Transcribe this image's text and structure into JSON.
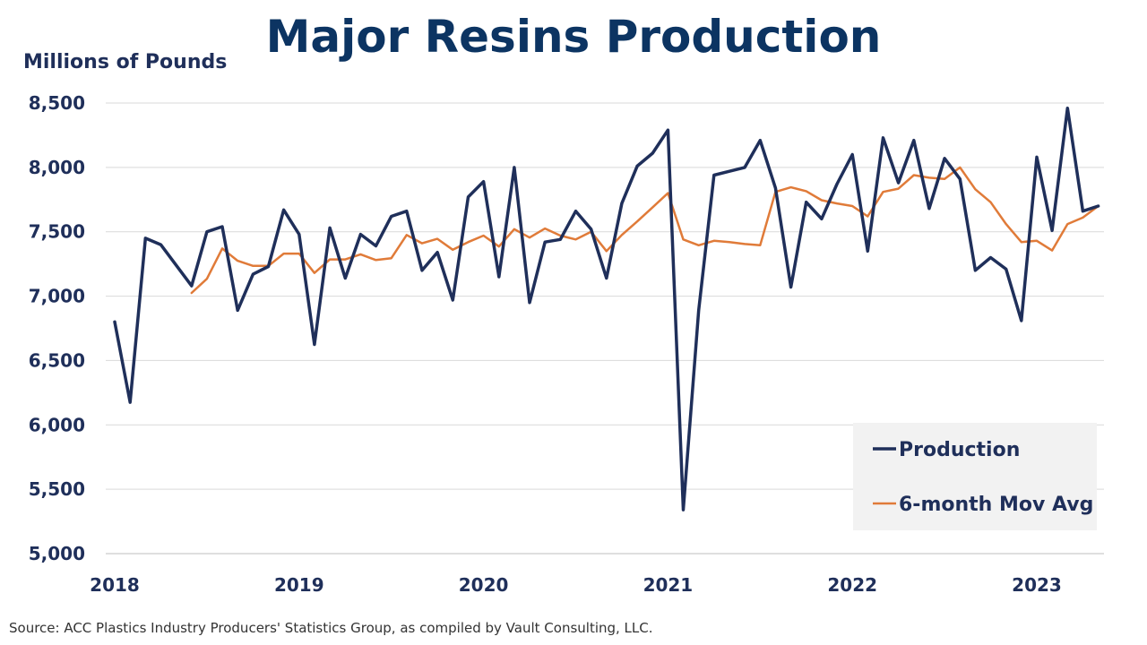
{
  "chart_data": {
    "type": "line",
    "title": "Major Resins Production",
    "ylabel": "Millions of Pounds",
    "xlabel": "",
    "ylim": [
      5000,
      8500
    ],
    "yticks": [
      5000,
      5500,
      6000,
      6500,
      7000,
      7500,
      8000,
      8500
    ],
    "ytick_labels": [
      "5,000",
      "5,500",
      "6,000",
      "6,500",
      "7,000",
      "7,500",
      "8,000",
      "8,500"
    ],
    "xticks": [
      "2018",
      "2019",
      "2020",
      "2021",
      "2022",
      "2023"
    ],
    "grid": "horizontal",
    "legend_position": "bottom-right",
    "x_start": "2018-01",
    "x_end": "2023-05",
    "series": [
      {
        "name": "Production",
        "color": "#1f2f5a",
        "values": [
          6800,
          6175,
          7450,
          7400,
          7240,
          7080,
          7500,
          7540,
          6890,
          7170,
          7230,
          7670,
          7480,
          6625,
          7530,
          7140,
          7480,
          7390,
          7620,
          7660,
          7200,
          7340,
          6970,
          7770,
          7890,
          7150,
          8000,
          6950,
          7420,
          7440,
          7660,
          7520,
          7140,
          7720,
          8010,
          8110,
          8290,
          5340,
          6890,
          7940,
          7970,
          8000,
          8210,
          7840,
          7070,
          7730,
          7600,
          7870,
          8100,
          7350,
          8230,
          7880,
          8210,
          7680,
          8070,
          7910,
          7200,
          7300,
          7210,
          6810,
          8080,
          7510,
          8460,
          7660,
          7700
        ]
      },
      {
        "name": "6-month Mov Avg",
        "color": "#e07b39",
        "values": [
          null,
          null,
          null,
          null,
          null,
          7025,
          7135,
          7370,
          7275,
          7235,
          7235,
          7330,
          7330,
          7180,
          7285,
          7285,
          7325,
          7280,
          7295,
          7475,
          7410,
          7445,
          7360,
          7420,
          7470,
          7385,
          7520,
          7455,
          7525,
          7470,
          7440,
          7500,
          7350,
          7475,
          7580,
          7690,
          7800,
          7440,
          7395,
          7430,
          7420,
          7405,
          7395,
          7810,
          7845,
          7815,
          7745,
          7720,
          7700,
          7620,
          7810,
          7835,
          7940,
          7920,
          7910,
          8000,
          7830,
          7730,
          7560,
          7420,
          7430,
          7355,
          7560,
          7610,
          7700
        ]
      }
    ]
  },
  "source_text": "Source:  ACC Plastics Industry Producers' Statistics Group, as compiled by Vault Consulting, LLC."
}
